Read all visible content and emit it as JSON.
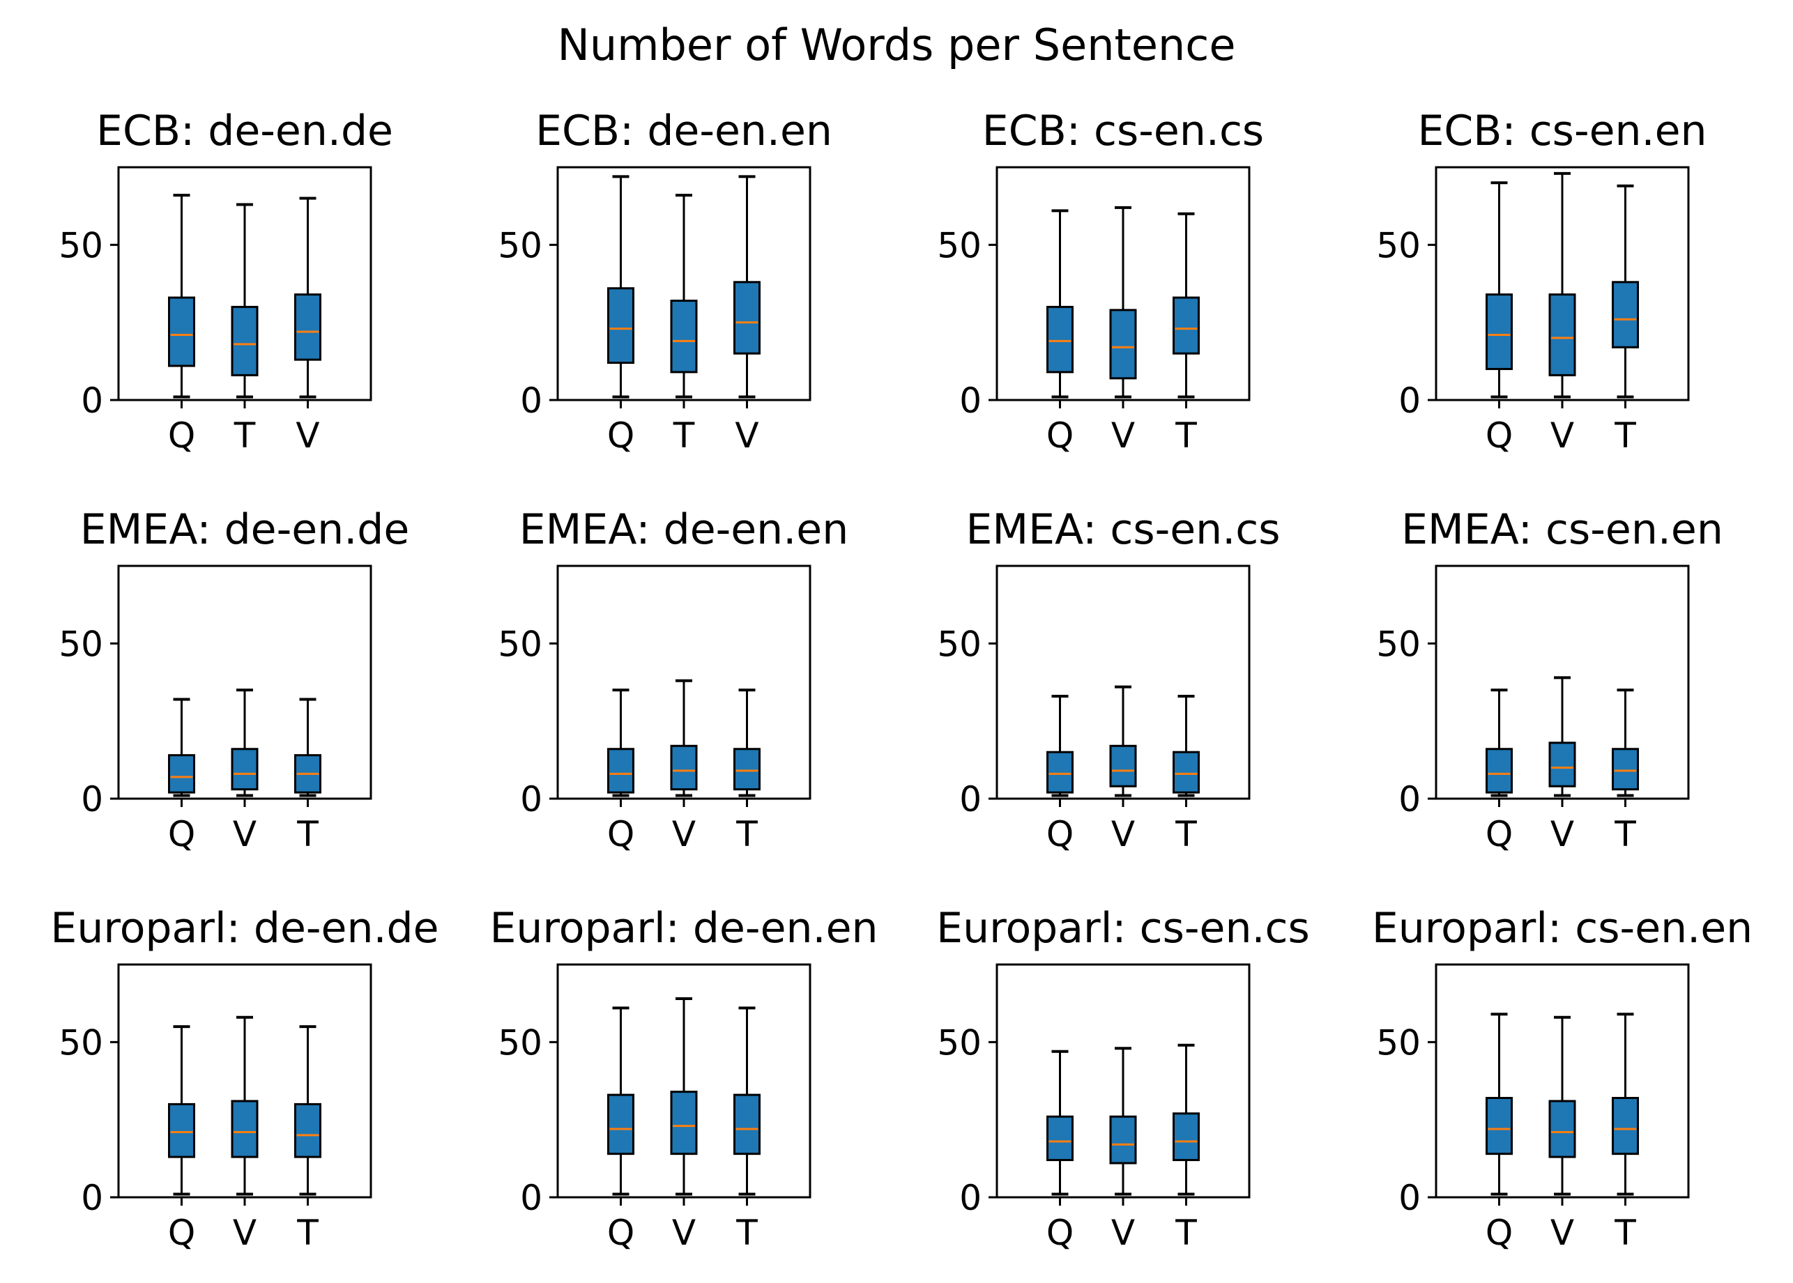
{
  "figure": {
    "title": "Number of Words per Sentence",
    "box_color": "#1f77b4",
    "median_color": "#ff7f0e",
    "edge_color": "#000000"
  },
  "chart_data": [
    {
      "type": "box",
      "title": "ECB: de-en.de",
      "categories": [
        "Q",
        "T",
        "V"
      ],
      "ylim": [
        0,
        75
      ],
      "yticks": [
        0,
        50
      ],
      "boxes": [
        {
          "whislo": 1,
          "q1": 11,
          "median": 21,
          "q3": 33,
          "whishi": 66
        },
        {
          "whislo": 1,
          "q1": 8,
          "median": 18,
          "q3": 30,
          "whishi": 63
        },
        {
          "whislo": 1,
          "q1": 13,
          "median": 22,
          "q3": 34,
          "whishi": 65
        }
      ]
    },
    {
      "type": "box",
      "title": "ECB: de-en.en",
      "categories": [
        "Q",
        "T",
        "V"
      ],
      "ylim": [
        0,
        75
      ],
      "yticks": [
        0,
        50
      ],
      "boxes": [
        {
          "whislo": 1,
          "q1": 12,
          "median": 23,
          "q3": 36,
          "whishi": 72
        },
        {
          "whislo": 1,
          "q1": 9,
          "median": 19,
          "q3": 32,
          "whishi": 66
        },
        {
          "whislo": 1,
          "q1": 15,
          "median": 25,
          "q3": 38,
          "whishi": 72
        }
      ]
    },
    {
      "type": "box",
      "title": "ECB: cs-en.cs",
      "categories": [
        "Q",
        "V",
        "T"
      ],
      "ylim": [
        0,
        75
      ],
      "yticks": [
        0,
        50
      ],
      "boxes": [
        {
          "whislo": 1,
          "q1": 9,
          "median": 19,
          "q3": 30,
          "whishi": 61
        },
        {
          "whislo": 1,
          "q1": 7,
          "median": 17,
          "q3": 29,
          "whishi": 62
        },
        {
          "whislo": 1,
          "q1": 15,
          "median": 23,
          "q3": 33,
          "whishi": 60
        }
      ]
    },
    {
      "type": "box",
      "title": "ECB: cs-en.en",
      "categories": [
        "Q",
        "V",
        "T"
      ],
      "ylim": [
        0,
        75
      ],
      "yticks": [
        0,
        50
      ],
      "boxes": [
        {
          "whislo": 1,
          "q1": 10,
          "median": 21,
          "q3": 34,
          "whishi": 70
        },
        {
          "whislo": 1,
          "q1": 8,
          "median": 20,
          "q3": 34,
          "whishi": 73
        },
        {
          "whislo": 1,
          "q1": 17,
          "median": 26,
          "q3": 38,
          "whishi": 69
        }
      ]
    },
    {
      "type": "box",
      "title": "EMEA: de-en.de",
      "categories": [
        "Q",
        "V",
        "T"
      ],
      "ylim": [
        0,
        75
      ],
      "yticks": [
        0,
        50
      ],
      "boxes": [
        {
          "whislo": 1,
          "q1": 2,
          "median": 7,
          "q3": 14,
          "whishi": 32
        },
        {
          "whislo": 1,
          "q1": 3,
          "median": 8,
          "q3": 16,
          "whishi": 35
        },
        {
          "whislo": 1,
          "q1": 2,
          "median": 8,
          "q3": 14,
          "whishi": 32
        }
      ]
    },
    {
      "type": "box",
      "title": "EMEA: de-en.en",
      "categories": [
        "Q",
        "V",
        "T"
      ],
      "ylim": [
        0,
        75
      ],
      "yticks": [
        0,
        50
      ],
      "boxes": [
        {
          "whislo": 1,
          "q1": 2,
          "median": 8,
          "q3": 16,
          "whishi": 35
        },
        {
          "whislo": 1,
          "q1": 3,
          "median": 9,
          "q3": 17,
          "whishi": 38
        },
        {
          "whislo": 1,
          "q1": 3,
          "median": 9,
          "q3": 16,
          "whishi": 35
        }
      ]
    },
    {
      "type": "box",
      "title": "EMEA: cs-en.cs",
      "categories": [
        "Q",
        "V",
        "T"
      ],
      "ylim": [
        0,
        75
      ],
      "yticks": [
        0,
        50
      ],
      "boxes": [
        {
          "whislo": 1,
          "q1": 2,
          "median": 8,
          "q3": 15,
          "whishi": 33
        },
        {
          "whislo": 1,
          "q1": 4,
          "median": 9,
          "q3": 17,
          "whishi": 36
        },
        {
          "whislo": 1,
          "q1": 2,
          "median": 8,
          "q3": 15,
          "whishi": 33
        }
      ]
    },
    {
      "type": "box",
      "title": "EMEA: cs-en.en",
      "categories": [
        "Q",
        "V",
        "T"
      ],
      "ylim": [
        0,
        75
      ],
      "yticks": [
        0,
        50
      ],
      "boxes": [
        {
          "whislo": 1,
          "q1": 2,
          "median": 8,
          "q3": 16,
          "whishi": 35
        },
        {
          "whislo": 1,
          "q1": 4,
          "median": 10,
          "q3": 18,
          "whishi": 39
        },
        {
          "whislo": 1,
          "q1": 3,
          "median": 9,
          "q3": 16,
          "whishi": 35
        }
      ]
    },
    {
      "type": "box",
      "title": "Europarl: de-en.de",
      "categories": [
        "Q",
        "V",
        "T"
      ],
      "ylim": [
        0,
        75
      ],
      "yticks": [
        0,
        50
      ],
      "boxes": [
        {
          "whislo": 1,
          "q1": 13,
          "median": 21,
          "q3": 30,
          "whishi": 55
        },
        {
          "whislo": 1,
          "q1": 13,
          "median": 21,
          "q3": 31,
          "whishi": 58
        },
        {
          "whislo": 1,
          "q1": 13,
          "median": 20,
          "q3": 30,
          "whishi": 55
        }
      ]
    },
    {
      "type": "box",
      "title": "Europarl: de-en.en",
      "categories": [
        "Q",
        "V",
        "T"
      ],
      "ylim": [
        0,
        75
      ],
      "yticks": [
        0,
        50
      ],
      "boxes": [
        {
          "whislo": 1,
          "q1": 14,
          "median": 22,
          "q3": 33,
          "whishi": 61
        },
        {
          "whislo": 1,
          "q1": 14,
          "median": 23,
          "q3": 34,
          "whishi": 64
        },
        {
          "whislo": 1,
          "q1": 14,
          "median": 22,
          "q3": 33,
          "whishi": 61
        }
      ]
    },
    {
      "type": "box",
      "title": "Europarl: cs-en.cs",
      "categories": [
        "Q",
        "V",
        "T"
      ],
      "ylim": [
        0,
        75
      ],
      "yticks": [
        0,
        50
      ],
      "boxes": [
        {
          "whislo": 1,
          "q1": 12,
          "median": 18,
          "q3": 26,
          "whishi": 47
        },
        {
          "whislo": 1,
          "q1": 11,
          "median": 17,
          "q3": 26,
          "whishi": 48
        },
        {
          "whislo": 1,
          "q1": 12,
          "median": 18,
          "q3": 27,
          "whishi": 49
        }
      ]
    },
    {
      "type": "box",
      "title": "Europarl: cs-en.en",
      "categories": [
        "Q",
        "V",
        "T"
      ],
      "ylim": [
        0,
        75
      ],
      "yticks": [
        0,
        50
      ],
      "boxes": [
        {
          "whislo": 1,
          "q1": 14,
          "median": 22,
          "q3": 32,
          "whishi": 59
        },
        {
          "whislo": 1,
          "q1": 13,
          "median": 21,
          "q3": 31,
          "whishi": 58
        },
        {
          "whislo": 1,
          "q1": 14,
          "median": 22,
          "q3": 32,
          "whishi": 59
        }
      ]
    }
  ]
}
